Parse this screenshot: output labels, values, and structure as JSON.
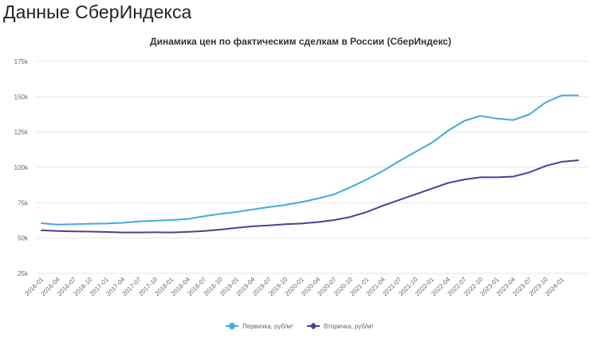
{
  "page": {
    "title": "Данные СберИндекса"
  },
  "chart_data": {
    "type": "line",
    "title": "Динамика цен по фактическим сделкам в России (СберИндекс)",
    "xlabel": "",
    "ylabel": "",
    "ylim": [
      25000,
      175000
    ],
    "yticks": [
      25000,
      50000,
      75000,
      100000,
      125000,
      150000,
      175000
    ],
    "ytick_labels": [
      "25k",
      "50k",
      "75k",
      "100k",
      "125k",
      "150k",
      "175k"
    ],
    "grid": "horizontal",
    "legend_position": "bottom",
    "x": [
      "2016-01",
      "2016-04",
      "2016-07",
      "2016-10",
      "2017-01",
      "2017-04",
      "2017-07",
      "2017-10",
      "2018-01",
      "2018-04",
      "2018-07",
      "2018-10",
      "2019-01",
      "2019-04",
      "2019-07",
      "2019-10",
      "2020-01",
      "2020-04",
      "2020-07",
      "2020-10",
      "2021-01",
      "2021-04",
      "2021-07",
      "2021-10",
      "2022-01",
      "2022-04",
      "2022-07",
      "2022-10",
      "2023-01",
      "2023-04",
      "2023-07",
      "2023-10",
      "2024-01",
      "2024-03"
    ],
    "xtick_labels": [
      "2016-01",
      "2016-04",
      "2016-07",
      "2016-10",
      "2017-01",
      "2017-04",
      "2017-07",
      "2017-10",
      "2018-01",
      "2018-04",
      "2018-07",
      "2018-10",
      "2019-01",
      "2019-04",
      "2019-07",
      "2019-10",
      "2020-01",
      "2020-04",
      "2020-07",
      "2020-10",
      "2021-01",
      "2021-04",
      "2021-07",
      "2021-10",
      "2022-01",
      "2022-04",
      "2022-07",
      "2022-10",
      "2023-01",
      "2023-04",
      "2023-07",
      "2023-10",
      "2024-01"
    ],
    "series": [
      {
        "name": "Первичка, руб/м²",
        "color": "#41aadc",
        "values": [
          60500,
          59500,
          59800,
          60200,
          60300,
          60800,
          61800,
          62300,
          62800,
          63500,
          65500,
          67200,
          68500,
          70300,
          72000,
          73500,
          75500,
          78000,
          81000,
          86000,
          91500,
          97500,
          104500,
          111000,
          117500,
          126000,
          133000,
          136500,
          134500,
          133500,
          137500,
          146000,
          151000,
          151000
        ]
      },
      {
        "name": "Вторичка, руб/м²",
        "color": "#4e4090",
        "values": [
          55500,
          55000,
          54800,
          54600,
          54300,
          54000,
          54000,
          54100,
          54000,
          54400,
          55000,
          56000,
          57300,
          58300,
          59000,
          59800,
          60300,
          61300,
          62800,
          65000,
          68500,
          73000,
          77000,
          81000,
          85000,
          89000,
          91500,
          93000,
          93000,
          93500,
          96500,
          101000,
          104000,
          105000
        ]
      }
    ]
  }
}
